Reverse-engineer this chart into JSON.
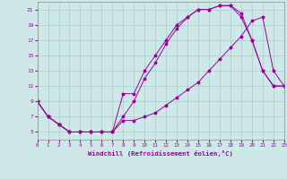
{
  "xlabel": "Windchill (Refroidissement éolien,°C)",
  "xlim": [
    0,
    23
  ],
  "ylim": [
    4,
    22
  ],
  "xticks": [
    0,
    1,
    2,
    3,
    4,
    5,
    6,
    7,
    8,
    9,
    10,
    11,
    12,
    13,
    14,
    15,
    16,
    17,
    18,
    19,
    20,
    21,
    22,
    23
  ],
  "yticks": [
    5,
    7,
    9,
    11,
    13,
    15,
    17,
    19,
    21
  ],
  "bg_color": "#cce8e8",
  "grid_color": "#aacccc",
  "line_color": "#990099",
  "line1_x": [
    0,
    1,
    2,
    3,
    4,
    5,
    6,
    7,
    8,
    9,
    10,
    11,
    12,
    13,
    14,
    15,
    16,
    17,
    18,
    19,
    20,
    21,
    22,
    23
  ],
  "line1_y": [
    9,
    7,
    6,
    5,
    5,
    5,
    5,
    5,
    10,
    10,
    13,
    15,
    17,
    19,
    20,
    21,
    21,
    21.5,
    21.5,
    20,
    17,
    13,
    11,
    11
  ],
  "line2_x": [
    0,
    1,
    2,
    3,
    4,
    5,
    6,
    7,
    8,
    9,
    10,
    11,
    12,
    13,
    14,
    15,
    16,
    17,
    18,
    19,
    20,
    21,
    22,
    23
  ],
  "line2_y": [
    9,
    7,
    6,
    5,
    5,
    5,
    5,
    5,
    7,
    9,
    12,
    14,
    16.5,
    18.5,
    20,
    21,
    21,
    21.5,
    21.5,
    20.5,
    17,
    13,
    11,
    11
  ],
  "line3_x": [
    0,
    1,
    2,
    3,
    4,
    5,
    6,
    7,
    8,
    9,
    10,
    11,
    12,
    13,
    14,
    15,
    16,
    17,
    18,
    19,
    20,
    21,
    22,
    23
  ],
  "line3_y": [
    9,
    7,
    6,
    5,
    5,
    5,
    5,
    5,
    6.5,
    6.5,
    7,
    7.5,
    8.5,
    9.5,
    10.5,
    11.5,
    13,
    14.5,
    16,
    17.5,
    19.5,
    20,
    13,
    11
  ]
}
